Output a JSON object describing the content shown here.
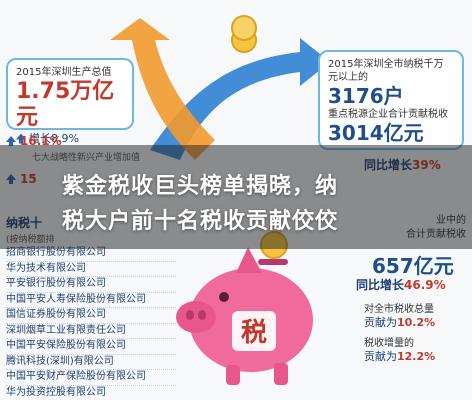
{
  "colors": {
    "accent_blue": "#1f4e8c",
    "accent_red": "#c0392b",
    "pig_pink": "#f06b9c",
    "arrow_blue": "#2f7fd1",
    "arrow_orange": "#f29a2e"
  },
  "left_box": {
    "label": "2015年深圳生产总值",
    "value": "1.75万亿元",
    "growth_icon": "up-arrow-icon",
    "growth": "增长8.9%"
  },
  "left_pcts": [
    {
      "value": "16.1%",
      "note": "七大战略性新兴产业增加值"
    },
    {
      "value": "15",
      "note": ""
    }
  ],
  "left_list": {
    "title": "纳税十",
    "subtitle": "(按纳税额排",
    "companies": [
      "招商银行股份有限公司",
      "华为技术有限公司",
      "平安银行股份有限公司",
      "中国平安人寿保险股份有限公司",
      "国信证券股份有限公司",
      "深圳烟草工业有限责任公司",
      "中国平安保险股份有限公司",
      "腾讯科技(深圳)有限公司",
      "中国平安财产保险股份有限公司",
      "华为投资控股有限公司"
    ]
  },
  "right_box": {
    "line1": "2015年深圳全市纳税千万",
    "line2": "元以上的",
    "households": "3176户",
    "line3": "重点税源企业合计贡献税收",
    "amount": "3014亿元"
  },
  "right_stats": {
    "growth1_label": "同比增长",
    "growth1_value": "39%",
    "mid_text_1": "业中的",
    "mid_text_2": "合计贡献税收",
    "amount": "657亿元",
    "growth2_label": "同比增长",
    "growth2_value": "46.9%",
    "share_label": "对全市税收总量",
    "share_prefix": "贡献",
    "share_suffix": "为",
    "share_value": "10.2%",
    "incr_label": "税收增量的",
    "incr_prefix": "贡献",
    "incr_suffix": "为",
    "incr_value": "12.2%"
  },
  "piggy": {
    "stamp": "税"
  },
  "banner": {
    "line1": "紫金税收巨头榜单揭晓，纳",
    "line2": "税大户前十名税收贡献佼佼"
  }
}
